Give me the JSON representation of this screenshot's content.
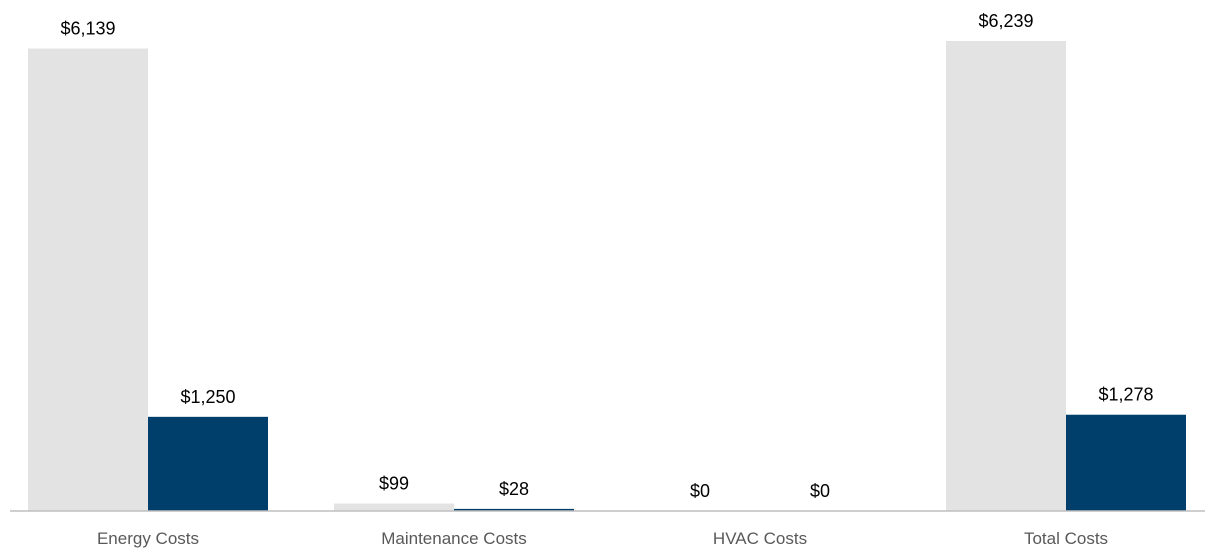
{
  "chart_data": {
    "type": "bar",
    "categories": [
      "Energy Costs",
      "Maintenance Costs",
      "HVAC Costs",
      "Total Costs"
    ],
    "series": [
      {
        "values": [
          6139,
          99,
          0,
          6239
        ],
        "labels": [
          "$6,139",
          "$99",
          "$0",
          "$6,239"
        ],
        "color": "#e3e3e3"
      },
      {
        "values": [
          1250,
          28,
          0,
          1278
        ],
        "labels": [
          "$1,250",
          "$28",
          "$0",
          "$1,278"
        ],
        "color": "#003f6b"
      }
    ],
    "ylim": [
      0,
      6239
    ],
    "grid": false,
    "legend": "none",
    "axis_color": "#bfbfbf"
  }
}
